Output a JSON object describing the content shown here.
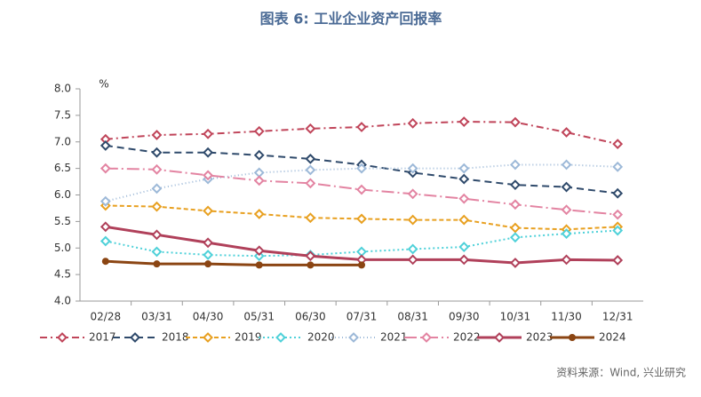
{
  "chart_data": {
    "type": "line",
    "title": "图表 6:  工业企业资产回报率",
    "y_unit": "%",
    "source": "资料来源：Wind, 兴业研究",
    "categories": [
      "02/28",
      "03/31",
      "04/30",
      "05/31",
      "06/30",
      "07/31",
      "08/31",
      "09/30",
      "10/31",
      "11/30",
      "12/31"
    ],
    "ylim": [
      4.0,
      8.0
    ],
    "yticks": [
      {
        "value": 4,
        "label": "4.0"
      },
      {
        "value": 4.5,
        "label": "4.5"
      },
      {
        "value": 5,
        "label": "5.0"
      },
      {
        "value": 5.5,
        "label": "5.5"
      },
      {
        "value": 6,
        "label": "6.0"
      },
      {
        "value": 6.5,
        "label": "6.5"
      },
      {
        "value": 7,
        "label": "7.0"
      },
      {
        "value": 7.5,
        "label": "7.5"
      },
      {
        "value": 8,
        "label": "8.0"
      }
    ],
    "series": [
      {
        "name": "2017",
        "color": "#c0455a",
        "values": [
          7.05,
          7.13,
          7.15,
          7.2,
          7.25,
          7.28,
          7.35,
          7.38,
          7.37,
          7.18,
          6.96
        ]
      },
      {
        "name": "2018",
        "color": "#2f4a6b",
        "values": [
          6.93,
          6.8,
          6.8,
          6.75,
          6.68,
          6.57,
          6.42,
          6.3,
          6.19,
          6.15,
          6.03
        ]
      },
      {
        "name": "2019",
        "color": "#e8a020",
        "values": [
          5.8,
          5.78,
          5.7,
          5.64,
          5.57,
          5.55,
          5.53,
          5.53,
          5.38,
          5.35,
          5.4
        ]
      },
      {
        "name": "2020",
        "color": "#4fd1d9",
        "values": [
          5.13,
          4.93,
          4.87,
          4.85,
          4.87,
          4.93,
          4.98,
          5.02,
          5.2,
          5.27,
          5.33
        ]
      },
      {
        "name": "2021",
        "color": "#9db9d8",
        "values": [
          5.88,
          6.12,
          6.3,
          6.42,
          6.47,
          6.5,
          6.5,
          6.5,
          6.57,
          6.57,
          6.53
        ]
      },
      {
        "name": "2022",
        "color": "#e384a2",
        "values": [
          6.5,
          6.48,
          6.37,
          6.27,
          6.22,
          6.1,
          6.02,
          5.93,
          5.82,
          5.72,
          5.63
        ]
      },
      {
        "name": "2023",
        "color": "#b0405a",
        "values": [
          5.4,
          5.25,
          5.1,
          4.95,
          4.85,
          4.78,
          4.78,
          4.78,
          4.72,
          4.78,
          4.77
        ]
      },
      {
        "name": "2024",
        "color": "#8b4513",
        "values": [
          4.75,
          4.7,
          4.7,
          4.68,
          4.68,
          4.68,
          null,
          null,
          null,
          null,
          null
        ]
      }
    ]
  }
}
